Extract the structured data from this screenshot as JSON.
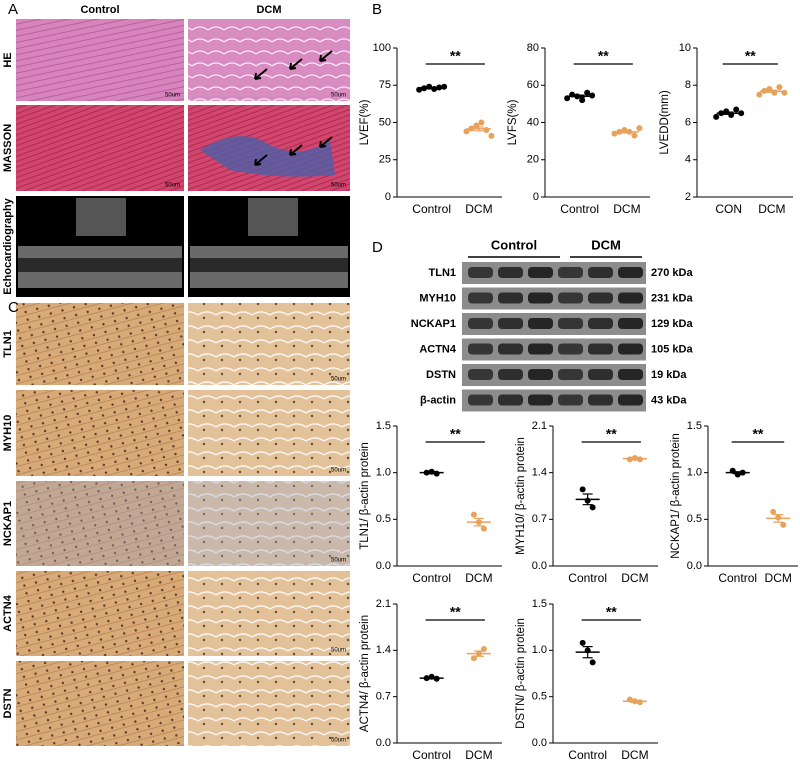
{
  "panel_labels": [
    "A",
    "B",
    "C",
    "D"
  ],
  "histology": {
    "columns": [
      "Control",
      "DCM"
    ],
    "rows": [
      "HE",
      "MASSON",
      "Echocardiography"
    ],
    "scale_bar": "50um"
  },
  "ihc": {
    "rows": [
      "TLN1",
      "MYH10",
      "NCKAP1",
      "ACTN4",
      "DSTN"
    ]
  },
  "western_blot": {
    "groups": [
      "Control",
      "DCM"
    ],
    "bands": [
      {
        "protein": "TLN1",
        "size": "270 kDa"
      },
      {
        "protein": "MYH10",
        "size": "231 kDa"
      },
      {
        "protein": "NCKAP1",
        "size": "129 kDa"
      },
      {
        "protein": "ACTN4",
        "size": "105 kDa"
      },
      {
        "protein": "DSTN",
        "size": "19 kDa"
      },
      {
        "protein": "β-actin",
        "size": "43 kDa"
      }
    ]
  },
  "chart_data": [
    {
      "type": "dot",
      "y_label": "LVEF(%)",
      "categories": [
        "Control",
        "DCM"
      ],
      "colors": [
        "#000000",
        "#e8a25c"
      ],
      "points": [
        [
          72,
          73,
          74,
          72.5,
          73.5,
          74
        ],
        [
          44,
          46,
          48,
          50,
          45,
          41
        ]
      ],
      "means": [
        73.2,
        45.7
      ],
      "errors": [
        0.4,
        1.3
      ],
      "annotation": "**",
      "ylim": [
        0,
        100
      ],
      "yticks": [
        0,
        25,
        50,
        75,
        100
      ]
    },
    {
      "type": "dot",
      "y_label": "LVFS(%)",
      "categories": [
        "Control",
        "DCM"
      ],
      "colors": [
        "#000000",
        "#e8a25c"
      ],
      "points": [
        [
          53,
          55,
          54,
          52,
          56,
          54.5
        ],
        [
          34,
          35,
          36,
          35,
          33,
          37
        ]
      ],
      "means": [
        54.1,
        35
      ],
      "errors": [
        0.6,
        0.6
      ],
      "annotation": "**",
      "ylim": [
        0,
        80
      ],
      "yticks": [
        0,
        20,
        40,
        60,
        80
      ]
    },
    {
      "type": "dot",
      "y_label": "LVEDD(mm)",
      "categories": [
        "CON",
        "DCM"
      ],
      "colors": [
        "#000000",
        "#e8a25c"
      ],
      "points": [
        [
          6.3,
          6.5,
          6.6,
          6.4,
          6.7,
          6.5
        ],
        [
          7.5,
          7.7,
          7.8,
          7.6,
          7.9,
          7.6
        ]
      ],
      "means": [
        6.5,
        7.68
      ],
      "errors": [
        0.06,
        0.06
      ],
      "annotation": "**",
      "ylim": [
        2,
        10
      ],
      "yticks": [
        2,
        4,
        6,
        8,
        10
      ]
    },
    {
      "type": "dot",
      "y_label": "TLN1/ β-actin protein",
      "categories": [
        "Control",
        "DCM"
      ],
      "colors": [
        "#000000",
        "#e8a25c"
      ],
      "points": [
        [
          1.0,
          1.01,
          0.99
        ],
        [
          0.55,
          0.47,
          0.4
        ]
      ],
      "means": [
        1.0,
        0.47
      ],
      "errors": [
        0.01,
        0.04
      ],
      "annotation": "**",
      "ylim": [
        0,
        1.5
      ],
      "yticks": [
        {
          "value": 0,
          "label": "0.0"
        },
        0.5,
        {
          "value": 1,
          "label": "1.0"
        },
        1.5
      ]
    },
    {
      "type": "dot",
      "y_label": "MYH10/ β-actin protein",
      "categories": [
        "Control",
        "DCM"
      ],
      "colors": [
        "#000000",
        "#e8a25c"
      ],
      "points": [
        [
          1.15,
          0.98,
          0.88
        ],
        [
          1.6,
          1.62,
          1.6
        ]
      ],
      "means": [
        1.0,
        1.61
      ],
      "errors": [
        0.08,
        0.01
      ],
      "annotation": "**",
      "ylim": [
        0,
        2.1
      ],
      "yticks": [
        {
          "value": 0,
          "label": "0.0"
        },
        0.7,
        1.4,
        2.1
      ]
    },
    {
      "type": "dot",
      "y_label": "NCKAP1/ β-actin protein",
      "categories": [
        "Control",
        "DCM"
      ],
      "colors": [
        "#000000",
        "#e8a25c"
      ],
      "points": [
        [
          1.02,
          0.98,
          1.0
        ],
        [
          0.58,
          0.52,
          0.44
        ]
      ],
      "means": [
        1.0,
        0.51
      ],
      "errors": [
        0.01,
        0.04
      ],
      "annotation": "**",
      "ylim": [
        0,
        1.5
      ],
      "yticks": [
        {
          "value": 0,
          "label": "0.0"
        },
        0.5,
        {
          "value": 1,
          "label": "1.0"
        },
        1.5
      ]
    },
    {
      "type": "dot",
      "y_label": "ACTN4/ β-actin protein",
      "categories": [
        "Control",
        "DCM"
      ],
      "colors": [
        "#000000",
        "#e8a25c"
      ],
      "points": [
        [
          0.98,
          1.0,
          0.97
        ],
        [
          1.28,
          1.35,
          1.42
        ]
      ],
      "means": [
        0.98,
        1.35
      ],
      "errors": [
        0.01,
        0.04
      ],
      "annotation": "**",
      "ylim": [
        0,
        2.1
      ],
      "yticks": [
        {
          "value": 0,
          "label": "0.0"
        },
        0.7,
        1.4,
        2.1
      ]
    },
    {
      "type": "dot",
      "y_label": "DSTN/ β-actin protein",
      "categories": [
        "Control",
        "DCM"
      ],
      "colors": [
        "#000000",
        "#e8a25c"
      ],
      "points": [
        [
          1.08,
          1.0,
          0.87
        ],
        [
          0.47,
          0.45,
          0.44
        ]
      ],
      "means": [
        0.98,
        0.45
      ],
      "errors": [
        0.06,
        0.01
      ],
      "annotation": "**",
      "ylim": [
        0,
        1.5
      ],
      "yticks": [
        {
          "value": 0,
          "label": "0.0"
        },
        0.5,
        {
          "value": 1,
          "label": "1.0"
        },
        1.5
      ]
    }
  ]
}
